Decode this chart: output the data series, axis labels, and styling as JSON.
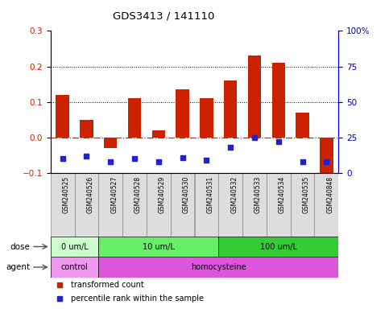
{
  "title": "GDS3413 / 141110",
  "samples": [
    "GSM240525",
    "GSM240526",
    "GSM240527",
    "GSM240528",
    "GSM240529",
    "GSM240530",
    "GSM240531",
    "GSM240532",
    "GSM240533",
    "GSM240534",
    "GSM240535",
    "GSM240848"
  ],
  "transformed_count": [
    0.12,
    0.05,
    -0.03,
    0.11,
    0.02,
    0.135,
    0.11,
    0.16,
    0.23,
    0.21,
    0.07,
    -0.1
  ],
  "percentile_rank": [
    10,
    12,
    8,
    10,
    8,
    11,
    9,
    18,
    25,
    22,
    8,
    8
  ],
  "ylim_left": [
    -0.1,
    0.3
  ],
  "ylim_right": [
    0,
    100
  ],
  "yticks_left": [
    -0.1,
    0.0,
    0.1,
    0.2,
    0.3
  ],
  "yticks_right": [
    0,
    25,
    50,
    75,
    100
  ],
  "ytick_labels_right": [
    "0",
    "25",
    "50",
    "75",
    "100%"
  ],
  "bar_color": "#cc2200",
  "marker_color": "#2222cc",
  "dose_groups": [
    {
      "label": "0 um/L",
      "start": 0,
      "end": 2,
      "color": "#ccffcc"
    },
    {
      "label": "10 um/L",
      "start": 2,
      "end": 7,
      "color": "#66ee66"
    },
    {
      "label": "100 um/L",
      "start": 7,
      "end": 12,
      "color": "#33cc33"
    }
  ],
  "agent_groups": [
    {
      "label": "control",
      "start": 0,
      "end": 2,
      "color": "#ee99ee"
    },
    {
      "label": "homocysteine",
      "start": 2,
      "end": 12,
      "color": "#dd55dd"
    }
  ],
  "dose_label": "dose",
  "agent_label": "agent",
  "legend_items": [
    {
      "label": "transformed count",
      "color": "#cc2200",
      "marker": "s"
    },
    {
      "label": "percentile rank within the sample",
      "color": "#2222cc",
      "marker": "s"
    }
  ],
  "hline_color": "#cc2200",
  "grid_color": "#000000",
  "ylabel_left_color": "#cc2200",
  "ylabel_right_color": "#0000cc",
  "sample_box_color": "#dddddd",
  "sample_box_edge": "#888888"
}
